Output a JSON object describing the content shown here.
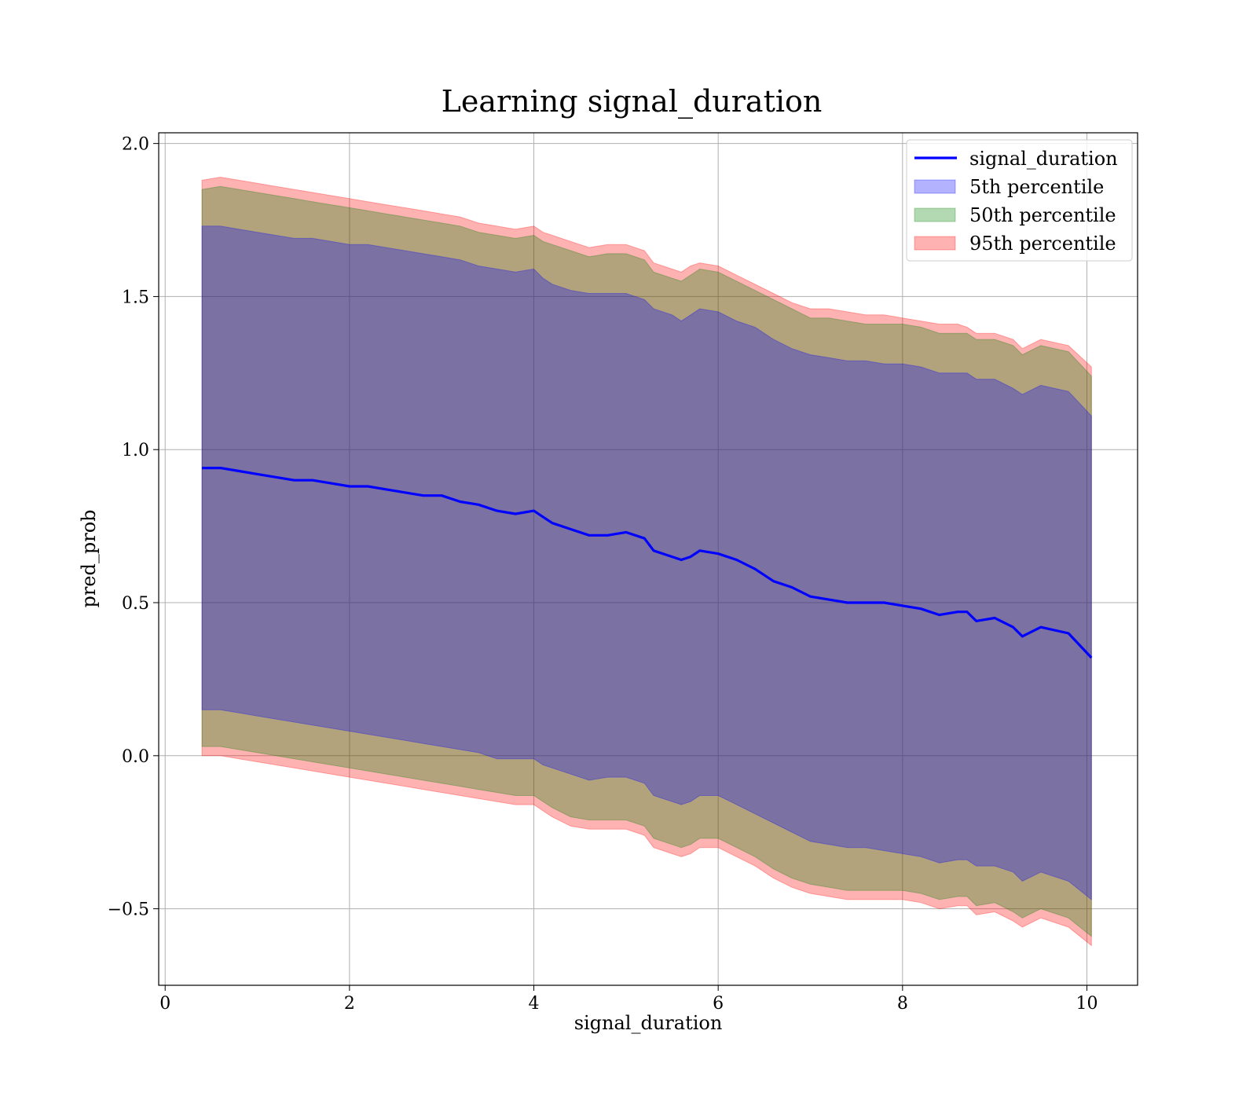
{
  "chart_data": {
    "type": "line",
    "title": "Learning signal_duration",
    "xlabel": "signal_duration",
    "ylabel": "pred_prob",
    "xlim": [
      -0.07,
      10.55
    ],
    "ylim": [
      -0.75,
      2.035
    ],
    "xticks": [
      0,
      2,
      4,
      6,
      8,
      10
    ],
    "xtick_labels": [
      "0",
      "2",
      "4",
      "6",
      "8",
      "10"
    ],
    "yticks": [
      -0.5,
      0.0,
      0.5,
      1.0,
      1.5,
      2.0
    ],
    "ytick_labels": [
      "−0.5",
      "0.0",
      "0.5",
      "1.0",
      "1.5",
      "2.0"
    ],
    "grid": true,
    "legend_position": "top-right",
    "x": [
      0.4,
      0.6,
      0.8,
      1.0,
      1.2,
      1.4,
      1.6,
      1.8,
      2.0,
      2.2,
      2.4,
      2.6,
      2.8,
      3.0,
      3.2,
      3.4,
      3.6,
      3.8,
      4.0,
      4.1,
      4.2,
      4.4,
      4.6,
      4.8,
      5.0,
      5.2,
      5.3,
      5.5,
      5.6,
      5.7,
      5.8,
      6.0,
      6.2,
      6.4,
      6.6,
      6.8,
      7.0,
      7.2,
      7.4,
      7.6,
      7.8,
      8.0,
      8.2,
      8.4,
      8.6,
      8.7,
      8.8,
      9.0,
      9.2,
      9.3,
      9.5,
      9.8,
      10.05
    ],
    "series": [
      {
        "name": "signal_duration",
        "kind": "line",
        "color": "#0000ff",
        "values": [
          0.94,
          0.94,
          0.93,
          0.92,
          0.91,
          0.9,
          0.9,
          0.89,
          0.88,
          0.88,
          0.87,
          0.86,
          0.85,
          0.85,
          0.83,
          0.82,
          0.8,
          0.79,
          0.8,
          0.78,
          0.76,
          0.74,
          0.72,
          0.72,
          0.73,
          0.71,
          0.67,
          0.65,
          0.64,
          0.65,
          0.67,
          0.66,
          0.64,
          0.61,
          0.57,
          0.55,
          0.52,
          0.51,
          0.5,
          0.5,
          0.5,
          0.49,
          0.48,
          0.46,
          0.47,
          0.47,
          0.44,
          0.45,
          0.42,
          0.39,
          0.42,
          0.4,
          0.32
        ]
      },
      {
        "name": "5th percentile",
        "kind": "band",
        "color": "#0000ff",
        "lower": [
          0.15,
          0.15,
          0.14,
          0.13,
          0.12,
          0.11,
          0.1,
          0.09,
          0.08,
          0.07,
          0.06,
          0.05,
          0.04,
          0.03,
          0.02,
          0.01,
          -0.01,
          -0.01,
          -0.01,
          -0.03,
          -0.04,
          -0.06,
          -0.08,
          -0.07,
          -0.07,
          -0.09,
          -0.13,
          -0.15,
          -0.16,
          -0.15,
          -0.13,
          -0.13,
          -0.16,
          -0.19,
          -0.22,
          -0.25,
          -0.28,
          -0.29,
          -0.3,
          -0.3,
          -0.31,
          -0.32,
          -0.33,
          -0.35,
          -0.34,
          -0.34,
          -0.36,
          -0.36,
          -0.38,
          -0.41,
          -0.38,
          -0.41,
          -0.47
        ],
        "upper": [
          1.73,
          1.73,
          1.72,
          1.71,
          1.7,
          1.69,
          1.69,
          1.68,
          1.67,
          1.67,
          1.66,
          1.65,
          1.64,
          1.63,
          1.62,
          1.6,
          1.59,
          1.58,
          1.59,
          1.56,
          1.54,
          1.52,
          1.51,
          1.51,
          1.51,
          1.49,
          1.46,
          1.44,
          1.42,
          1.44,
          1.46,
          1.45,
          1.42,
          1.4,
          1.36,
          1.33,
          1.31,
          1.3,
          1.29,
          1.29,
          1.28,
          1.28,
          1.27,
          1.25,
          1.25,
          1.25,
          1.23,
          1.23,
          1.2,
          1.18,
          1.21,
          1.19,
          1.11
        ]
      },
      {
        "name": "50th percentile",
        "kind": "band",
        "color": "#008000",
        "lower": [
          0.03,
          0.03,
          0.02,
          0.01,
          0.0,
          -0.01,
          -0.02,
          -0.03,
          -0.04,
          -0.05,
          -0.06,
          -0.07,
          -0.08,
          -0.09,
          -0.1,
          -0.11,
          -0.12,
          -0.13,
          -0.13,
          -0.15,
          -0.17,
          -0.2,
          -0.21,
          -0.21,
          -0.21,
          -0.23,
          -0.27,
          -0.29,
          -0.3,
          -0.29,
          -0.27,
          -0.27,
          -0.3,
          -0.33,
          -0.37,
          -0.4,
          -0.42,
          -0.43,
          -0.44,
          -0.44,
          -0.44,
          -0.44,
          -0.45,
          -0.47,
          -0.46,
          -0.46,
          -0.49,
          -0.48,
          -0.51,
          -0.53,
          -0.5,
          -0.53,
          -0.59
        ],
        "upper": [
          1.85,
          1.86,
          1.85,
          1.84,
          1.83,
          1.82,
          1.81,
          1.8,
          1.79,
          1.78,
          1.77,
          1.76,
          1.75,
          1.74,
          1.73,
          1.71,
          1.7,
          1.69,
          1.7,
          1.68,
          1.67,
          1.65,
          1.63,
          1.64,
          1.64,
          1.62,
          1.58,
          1.56,
          1.55,
          1.57,
          1.59,
          1.58,
          1.55,
          1.52,
          1.49,
          1.46,
          1.43,
          1.43,
          1.42,
          1.41,
          1.41,
          1.41,
          1.4,
          1.38,
          1.38,
          1.38,
          1.36,
          1.36,
          1.34,
          1.31,
          1.34,
          1.32,
          1.24
        ]
      },
      {
        "name": "95th percentile",
        "kind": "band",
        "color": "#ff0000",
        "lower": [
          0.0,
          0.0,
          -0.01,
          -0.02,
          -0.03,
          -0.04,
          -0.05,
          -0.06,
          -0.07,
          -0.08,
          -0.09,
          -0.1,
          -0.11,
          -0.12,
          -0.13,
          -0.14,
          -0.15,
          -0.16,
          -0.16,
          -0.18,
          -0.2,
          -0.23,
          -0.24,
          -0.24,
          -0.24,
          -0.26,
          -0.3,
          -0.32,
          -0.33,
          -0.32,
          -0.3,
          -0.3,
          -0.33,
          -0.36,
          -0.4,
          -0.43,
          -0.45,
          -0.46,
          -0.47,
          -0.47,
          -0.47,
          -0.47,
          -0.48,
          -0.5,
          -0.49,
          -0.49,
          -0.52,
          -0.51,
          -0.54,
          -0.56,
          -0.53,
          -0.56,
          -0.62
        ],
        "upper": [
          1.88,
          1.89,
          1.88,
          1.87,
          1.86,
          1.85,
          1.84,
          1.83,
          1.82,
          1.81,
          1.8,
          1.79,
          1.78,
          1.77,
          1.76,
          1.74,
          1.73,
          1.72,
          1.73,
          1.71,
          1.7,
          1.68,
          1.66,
          1.67,
          1.67,
          1.65,
          1.61,
          1.59,
          1.58,
          1.6,
          1.61,
          1.6,
          1.57,
          1.54,
          1.51,
          1.48,
          1.46,
          1.46,
          1.45,
          1.44,
          1.44,
          1.43,
          1.42,
          1.41,
          1.41,
          1.4,
          1.38,
          1.38,
          1.36,
          1.33,
          1.36,
          1.34,
          1.27
        ]
      }
    ]
  }
}
